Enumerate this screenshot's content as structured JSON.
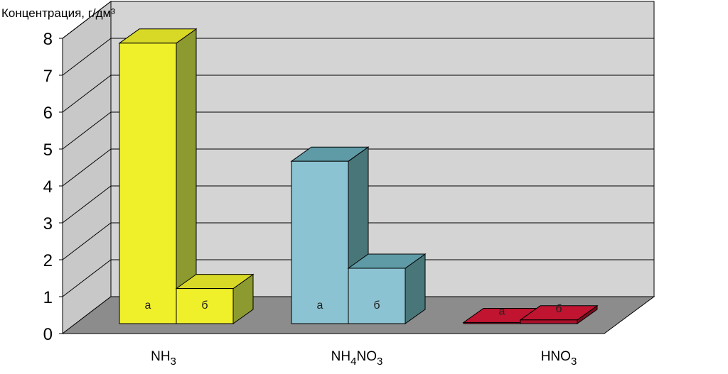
{
  "chart_data": {
    "type": "bar",
    "ylabel": "Концентрация, г/дм³",
    "ylim": [
      0,
      8
    ],
    "yticks": [
      "0",
      "1",
      "2",
      "3",
      "4",
      "5",
      "6",
      "7",
      "8"
    ],
    "categories": [
      {
        "base": "NH",
        "sub": "3",
        "tail": "",
        "tail_sub": ""
      },
      {
        "base": "NH",
        "sub": "4",
        "tail": "NO",
        "tail_sub": "3"
      },
      {
        "base": "HNO",
        "sub": "3",
        "tail": "",
        "tail_sub": ""
      }
    ],
    "series": [
      {
        "name": "а",
        "values": [
          7.6,
          4.4,
          0.03
        ]
      },
      {
        "name": "б",
        "values": [
          0.95,
          1.5,
          0.1
        ]
      }
    ],
    "colors": [
      {
        "front": "#f0f02a",
        "top": "#d8d826",
        "side": "#8c9a30"
      },
      {
        "front": "#8cc3d2",
        "top": "#5e9ba6",
        "side": "#487679"
      },
      {
        "front": "#a8102a",
        "top": "#c01430",
        "side": "#7a0c1e"
      }
    ],
    "grid": true,
    "style": "3d-column"
  }
}
